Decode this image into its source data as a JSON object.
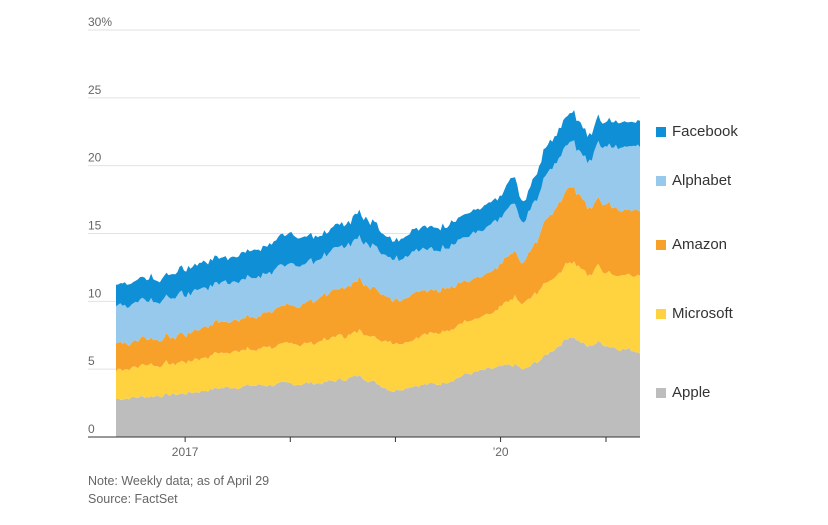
{
  "chart_data": {
    "type": "area",
    "stacked": true,
    "x_start": "2016-05-06",
    "x_end": "2021-04-29",
    "x_tick_labels": [
      "2017",
      "’20"
    ],
    "y_tick_labels": [
      "30%",
      "25",
      "20",
      "15",
      "10",
      "5",
      "0"
    ],
    "ylim": [
      0,
      30
    ],
    "grid": true,
    "legend_position": "right",
    "note": "Note: Weekly data; as of April 29",
    "source": "Source: FactSet",
    "x": [
      "2016-05-06",
      "2016-09-01",
      "2017-01-01",
      "2017-05-01",
      "2017-09-01",
      "2018-01-01",
      "2018-05-01",
      "2018-09-01",
      "2018-12-24",
      "2019-03-01",
      "2019-06-01",
      "2019-09-01",
      "2019-12-01",
      "2020-02-20",
      "2020-03-23",
      "2020-06-01",
      "2020-09-01",
      "2020-10-30",
      "2020-12-01",
      "2021-02-01",
      "2021-04-29"
    ],
    "series": [
      {
        "name": "Apple",
        "color": "#bdbdbd",
        "values": [
          2.8,
          3.0,
          3.2,
          3.6,
          3.8,
          3.9,
          4.0,
          4.5,
          3.4,
          3.8,
          3.9,
          4.6,
          5.0,
          5.3,
          4.9,
          5.9,
          7.5,
          6.6,
          7.0,
          6.6,
          6.3
        ]
      },
      {
        "name": "Microsoft",
        "color": "#ffd23f",
        "values": [
          2.2,
          2.3,
          2.3,
          2.6,
          2.7,
          3.0,
          3.1,
          3.3,
          3.6,
          3.5,
          3.8,
          3.9,
          4.1,
          4.9,
          4.8,
          5.3,
          5.6,
          5.3,
          5.6,
          5.5,
          5.7
        ]
      },
      {
        "name": "Amazon",
        "color": "#f7a12b",
        "values": [
          1.9,
          1.9,
          2.0,
          2.3,
          2.5,
          2.8,
          3.2,
          3.8,
          3.2,
          3.4,
          3.2,
          3.0,
          3.0,
          3.3,
          3.0,
          4.5,
          5.6,
          4.9,
          5.0,
          4.9,
          4.8
        ]
      },
      {
        "name": "Alphabet",
        "color": "#96c9ec",
        "values": [
          2.8,
          2.9,
          2.9,
          2.9,
          2.9,
          3.0,
          2.9,
          3.1,
          3.1,
          3.0,
          3.0,
          3.2,
          3.5,
          3.5,
          3.0,
          3.3,
          3.3,
          3.3,
          4.0,
          4.5,
          4.8
        ]
      },
      {
        "name": "Facebook",
        "color": "#0f8fd6",
        "values": [
          1.6,
          1.7,
          1.8,
          1.9,
          2.0,
          2.2,
          1.6,
          1.8,
          1.4,
          1.6,
          1.7,
          1.7,
          1.7,
          1.8,
          1.5,
          2.1,
          2.2,
          2.0,
          1.9,
          1.8,
          1.9
        ]
      }
    ]
  }
}
